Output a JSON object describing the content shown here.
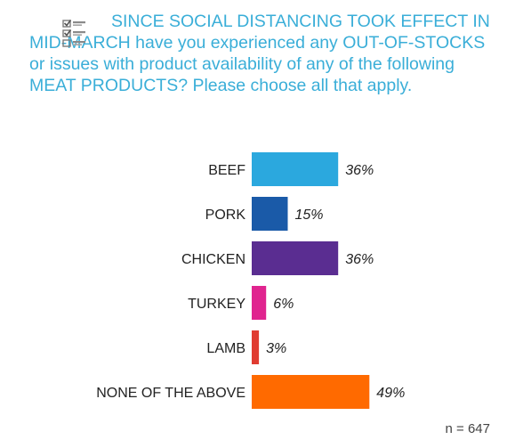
{
  "title": "SINCE SOCIAL DISTANCING TOOK EFFECT IN MID-MARCH have you experienced any OUT-OF-STOCKS or issues with product availability of any of the following MEAT PRODUCTS? Please choose all that apply.",
  "icon": "checklist-icon",
  "sample_size": "n = 647",
  "chart_data": {
    "type": "bar",
    "orientation": "horizontal",
    "title": "SINCE SOCIAL DISTANCING TOOK EFFECT IN MID-MARCH have you experienced any OUT-OF-STOCKS or issues with product availability of any of the following MEAT PRODUCTS? Please choose all that apply.",
    "categories": [
      "BEEF",
      "PORK",
      "CHICKEN",
      "TURKEY",
      "LAMB",
      "NONE OF THE ABOVE"
    ],
    "values": [
      36,
      15,
      36,
      6,
      3,
      49
    ],
    "value_labels": [
      "36%",
      "15%",
      "36%",
      "6%",
      "3%",
      "49%"
    ],
    "colors": [
      "#2ba8de",
      "#1a5aa8",
      "#5a2d91",
      "#e0248f",
      "#e03c31",
      "#ff6a00"
    ],
    "xlim": [
      0,
      100
    ],
    "grid": false
  }
}
